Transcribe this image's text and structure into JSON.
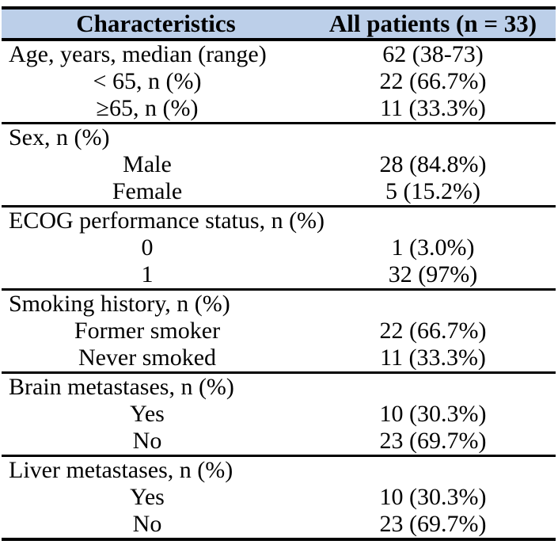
{
  "header": {
    "characteristics": "Characteristics",
    "all_patients": "All patients (n = 33)"
  },
  "sections": [
    {
      "rows": [
        {
          "label": "Age, years, median (range)",
          "value": "62 (38-73)"
        },
        {
          "label": "< 65, n (%)",
          "value": "22 (66.7%)"
        },
        {
          "label": "≥65, n (%)",
          "value": "11 (33.3%)"
        }
      ]
    },
    {
      "rows": [
        {
          "label": "Sex, n (%)",
          "value": ""
        },
        {
          "label": "Male",
          "value": "28 (84.8%)"
        },
        {
          "label": "Female",
          "value": "5 (15.2%)"
        }
      ]
    },
    {
      "rows": [
        {
          "label": "ECOG performance status, n (%)",
          "value": ""
        },
        {
          "label": "0",
          "value": "1 (3.0%)"
        },
        {
          "label": "1",
          "value": "32 (97%)"
        }
      ]
    },
    {
      "rows": [
        {
          "label": "Smoking history, n (%)",
          "value": ""
        },
        {
          "label": "Former smoker",
          "value": "22 (66.7%)"
        },
        {
          "label": "Never smoked",
          "value": "11 (33.3%)"
        }
      ]
    },
    {
      "rows": [
        {
          "label": "Brain metastases, n (%)",
          "value": ""
        },
        {
          "label": "Yes",
          "value": "10 (30.3%)"
        },
        {
          "label": "No",
          "value": "23 (69.7%)"
        }
      ]
    },
    {
      "rows": [
        {
          "label": "Liver metastases, n (%)",
          "value": ""
        },
        {
          "label": "Yes",
          "value": "10 (30.3%)"
        },
        {
          "label": "No",
          "value": "23 (69.7%)"
        }
      ]
    }
  ],
  "colors": {
    "header_bg": "#bccfe9",
    "border": "#000000"
  }
}
